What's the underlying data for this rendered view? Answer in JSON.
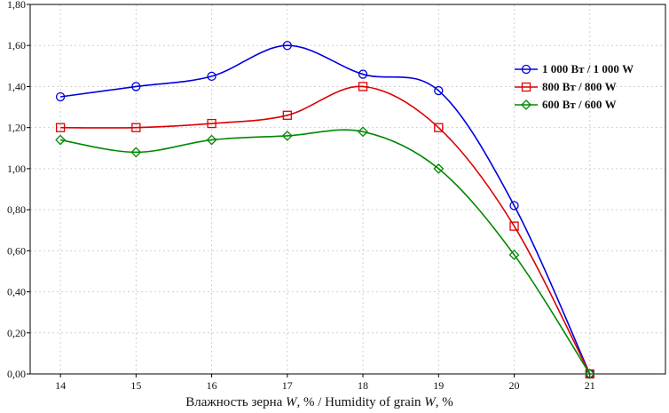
{
  "chart_data": {
    "type": "line",
    "xlabel_parts": [
      "Влажность зерна ",
      "W",
      ", % / Humidity of grain ",
      "W",
      ", %"
    ],
    "ylabel": "",
    "x": [
      14,
      15,
      16,
      17,
      18,
      19,
      20,
      21
    ],
    "xlim": [
      13.6,
      22.0
    ],
    "ylim": [
      0,
      1.8
    ],
    "x_ticks": [
      "14",
      "15",
      "16",
      "17",
      "18",
      "19",
      "20",
      "21"
    ],
    "y_ticks": [
      "0,00",
      "0,20",
      "0,40",
      "0,60",
      "0,80",
      "1,00",
      "1,20",
      "1,40",
      "1,60",
      "1,80"
    ],
    "grid": true,
    "legend_position": "right",
    "series": [
      {
        "name": "1 000 Вт / 1 000 W",
        "color": "#0000dd",
        "marker": "circle",
        "values": [
          1.35,
          1.4,
          1.45,
          1.6,
          1.46,
          1.38,
          0.82,
          0.0
        ]
      },
      {
        "name": "800 Вт / 800 W",
        "color": "#dd0000",
        "marker": "square",
        "values": [
          1.2,
          1.2,
          1.22,
          1.26,
          1.4,
          1.2,
          0.72,
          0.0
        ]
      },
      {
        "name": "600 Вт / 600 W",
        "color": "#008800",
        "marker": "diamond",
        "values": [
          1.14,
          1.08,
          1.14,
          1.16,
          1.18,
          1.0,
          0.58,
          0.0
        ]
      }
    ]
  }
}
